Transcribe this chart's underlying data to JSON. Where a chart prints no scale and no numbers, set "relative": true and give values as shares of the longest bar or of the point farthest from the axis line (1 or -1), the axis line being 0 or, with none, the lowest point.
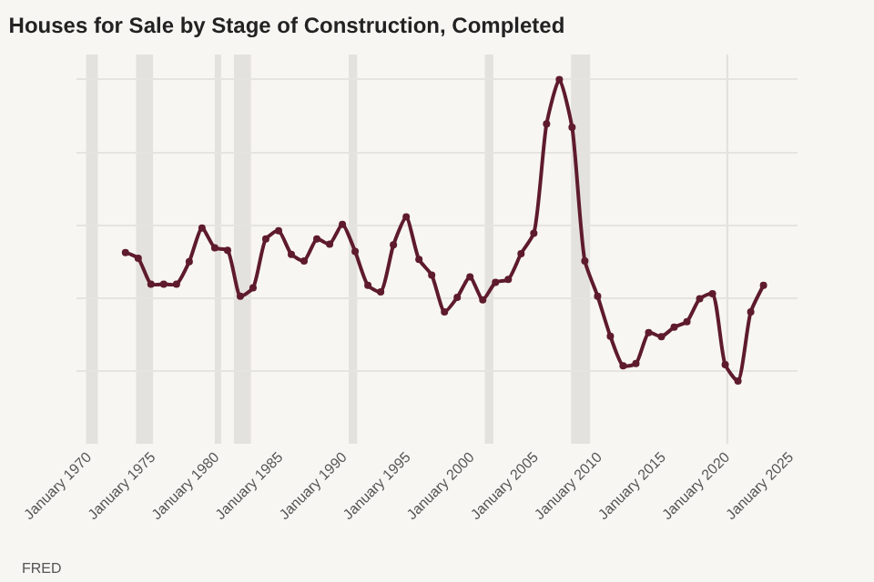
{
  "chart_data": {
    "type": "line",
    "title": "Houses for Sale by Stage of Construction, Completed",
    "relative": true,
    "x": [
      "1973",
      "1974",
      "1975",
      "1976",
      "1977",
      "1978",
      "1979",
      "1980",
      "1981",
      "1982",
      "1983",
      "1984",
      "1985",
      "1986",
      "1987",
      "1988",
      "1989",
      "1990",
      "1991",
      "1992",
      "1993",
      "1994",
      "1995",
      "1996",
      "1997",
      "1998",
      "1999",
      "2000",
      "2001",
      "2002",
      "2003",
      "2004",
      "2005",
      "2006",
      "2007",
      "2008",
      "2009",
      "2010",
      "2011",
      "2012",
      "2013",
      "2014",
      "2015",
      "2016",
      "2017",
      "2018",
      "2019",
      "2020",
      "2021",
      "2022",
      "2023"
    ],
    "series": [
      {
        "color": "#5e1b2c",
        "values": [
          0.525,
          0.509,
          0.438,
          0.438,
          0.438,
          0.5,
          0.592,
          0.538,
          0.531,
          0.405,
          0.428,
          0.562,
          0.585,
          0.52,
          0.502,
          0.562,
          0.548,
          0.602,
          0.528,
          0.435,
          0.417,
          0.546,
          0.623,
          0.506,
          0.463,
          0.362,
          0.402,
          0.458,
          0.395,
          0.443,
          0.451,
          0.522,
          0.578,
          0.878,
          1,
          0.869,
          0.502,
          0.405,
          0.295,
          0.214,
          0.22,
          0.305,
          0.294,
          0.32,
          0.335,
          0.398,
          0.412,
          0.217,
          0.172,
          0.362,
          0.435
        ]
      }
    ],
    "xlim": [
      "1969-03",
      "2025-09"
    ],
    "xticks": [
      {
        "value": "1970",
        "label": "January 1970"
      },
      {
        "value": "1975",
        "label": "January 1975"
      },
      {
        "value": "1980",
        "label": "January 1980"
      },
      {
        "value": "1985",
        "label": "January 1985"
      },
      {
        "value": "1990",
        "label": "January 1990"
      },
      {
        "value": "1995",
        "label": "January 1995"
      },
      {
        "value": "2000",
        "label": "January 2000"
      },
      {
        "value": "2005",
        "label": "January 2005"
      },
      {
        "value": "2010",
        "label": "January 2010"
      },
      {
        "value": "2015",
        "label": "January 2015"
      },
      {
        "value": "2020",
        "label": "January 2020"
      },
      {
        "value": "2025",
        "label": "January 2025"
      }
    ],
    "bands": [
      {
        "axis": "x",
        "from": "1969-12",
        "to": "1970-11",
        "color": "#e4e2de"
      },
      {
        "axis": "x",
        "from": "1973-11",
        "to": "1975-03",
        "color": "#e4e2de"
      },
      {
        "axis": "x",
        "from": "1980-01",
        "to": "1980-07",
        "color": "#e4e2de"
      },
      {
        "axis": "x",
        "from": "1981-07",
        "to": "1982-11",
        "color": "#e4e2de"
      },
      {
        "axis": "x",
        "from": "1990-07",
        "to": "1991-03",
        "color": "#e4e2de"
      },
      {
        "axis": "x",
        "from": "2001-03",
        "to": "2001-11",
        "color": "#e4e2de"
      },
      {
        "axis": "x",
        "from": "2007-12",
        "to": "2009-06",
        "color": "#e4e2de"
      },
      {
        "axis": "x",
        "from": "2020-02",
        "to": "2020-04",
        "color": "#e4e2de"
      }
    ],
    "annotations": [
      "FRED"
    ],
    "grid": "y",
    "marker": "circle",
    "line_style": "solid"
  }
}
